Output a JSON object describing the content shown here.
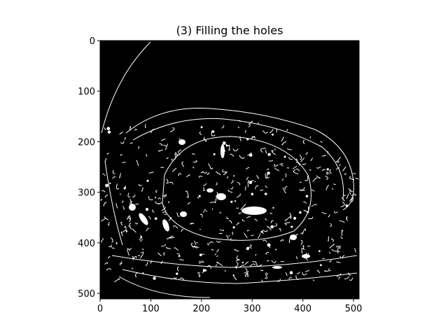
{
  "figure": {
    "title": "(3) Filling the holes",
    "background_color": "#ffffff",
    "image_background": "#000000",
    "foreground_color": "#ffffff"
  },
  "axes": {
    "x_ticks": [
      0,
      100,
      200,
      300,
      400,
      500
    ],
    "y_ticks": [
      0,
      100,
      200,
      300,
      400,
      500
    ],
    "x_range": [
      0,
      511
    ],
    "y_range": [
      0,
      511
    ],
    "y_inverted": true
  },
  "image": {
    "description_kind": "binary-edge-mask",
    "color_mode": "black-and-white"
  }
}
